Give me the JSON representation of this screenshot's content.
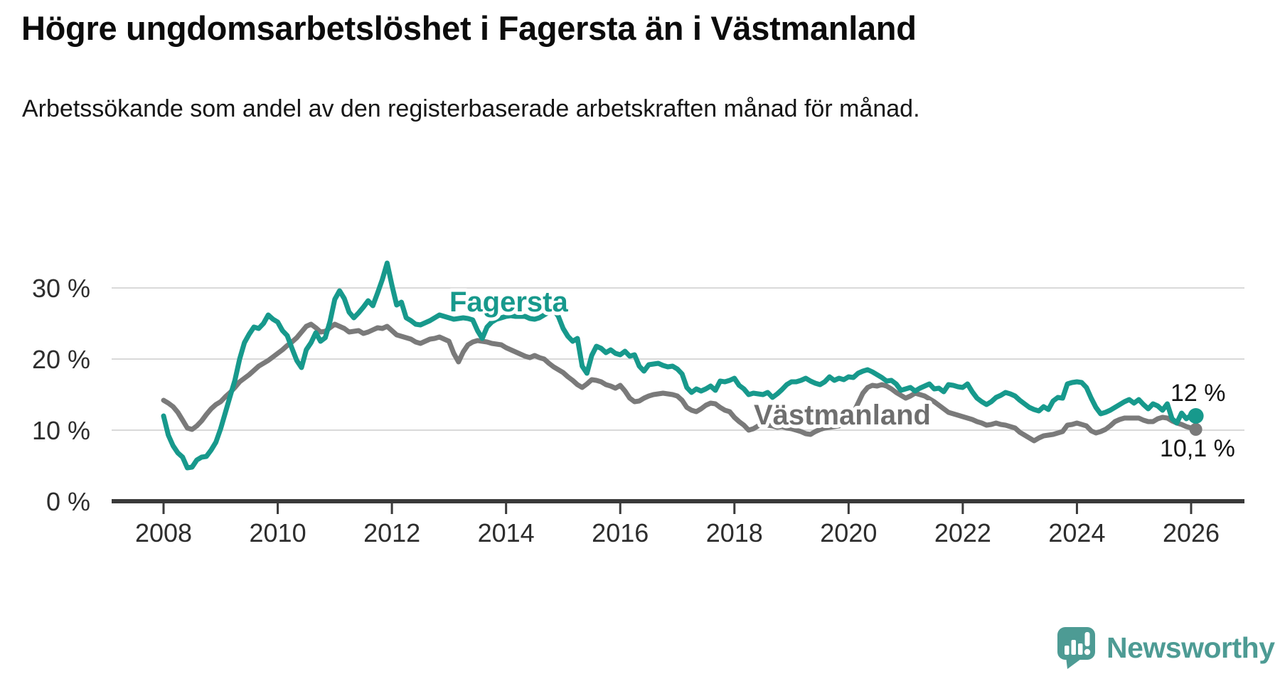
{
  "title": "Högre ungdomsarbetslöshet i Fagersta än i Västmanland",
  "subtitle": "Arbetssökande som andel av den registerbaserade arbetskraften månad för månad.",
  "branding": {
    "logo_text": "Newsworthy",
    "logo_color": "#4d9b94"
  },
  "chart_data": {
    "type": "line",
    "title": "Högre ungdomsarbetslöshet i Fagersta än i Västmanland",
    "subtitle": "Arbetssökande som andel av den registerbaserade arbetskraften månad för månad.",
    "x_axis": {
      "ticks": [
        2008,
        2010,
        2012,
        2014,
        2016,
        2018,
        2020,
        2022,
        2024,
        2026
      ],
      "tick_labels": [
        "2008",
        "2010",
        "2012",
        "2014",
        "2016",
        "2018",
        "2020",
        "2022",
        "2024",
        "2026"
      ],
      "range": [
        2007.1,
        2026.9
      ]
    },
    "y_axis": {
      "unit": "%",
      "ticks": [
        0,
        10,
        20,
        30
      ],
      "tick_labels": [
        "0 %",
        "10 %",
        "20 %",
        "30 %"
      ],
      "range": [
        0,
        35
      ],
      "grid": true
    },
    "style": {
      "grid_color": "#d9d9d9",
      "axis_color": "#3a3a3a",
      "line_width": 7
    },
    "series": [
      {
        "name": "Fagersta",
        "color": "#17998c",
        "end_label": "12 %",
        "end_value": 12,
        "end_dot_radius": 11,
        "x_start": 2008.0,
        "x_step": 0.08333,
        "values": [
          12,
          9.3,
          7.8,
          6.8,
          6.2,
          4.7,
          4.8,
          5.8,
          6.2,
          6.3,
          7.2,
          8.3,
          10.2,
          12.5,
          14.8,
          17,
          20,
          22.3,
          23.5,
          24.5,
          24.3,
          25,
          26.2,
          25.6,
          25.2,
          24,
          23.3,
          21.5,
          19.8,
          18.8,
          21.3,
          22.3,
          23.7,
          22.5,
          23,
          25.3,
          28.4,
          29.6,
          28.5,
          26.6,
          25.8,
          26.5,
          27.3,
          28.2,
          27.5,
          29.3,
          31.2,
          33.5,
          30.4,
          27.6,
          28,
          25.8,
          25.4,
          24.9,
          24.8,
          25.1,
          25.4,
          25.8,
          26.2,
          26,
          25.8,
          25.6,
          25.7,
          25.8,
          25.7,
          25.5,
          24,
          22.9,
          24.5,
          25.2,
          25.6,
          25.8,
          26,
          26.1,
          26,
          26,
          26,
          25.7,
          25.6,
          25.8,
          26.2,
          26.6,
          27,
          26,
          24.3,
          23.2,
          22.5,
          22.9,
          19,
          18,
          20.5,
          21.8,
          21.5,
          20.9,
          21.3,
          20.8,
          20.6,
          21.1,
          20.4,
          20.6,
          19,
          18.3,
          19.2,
          19.3,
          19.4,
          19.1,
          18.9,
          19,
          18.6,
          17.9,
          16,
          15.3,
          15.8,
          15.5,
          15.8,
          16.2,
          15.6,
          16.9,
          16.8,
          17,
          17.3,
          16.3,
          15.8,
          15,
          15.2,
          15.1,
          15,
          15.3,
          14.6,
          15.1,
          15.7,
          16.4,
          16.8,
          16.8,
          17,
          17.3,
          16.9,
          16.6,
          16.4,
          16.8,
          17.5,
          17,
          17.3,
          17.1,
          17.5,
          17.4,
          18,
          18.3,
          18.5,
          18.2,
          17.8,
          17.4,
          16.9,
          17,
          16.5,
          15.6,
          15.8,
          16,
          15.5,
          15.9,
          16.2,
          16.5,
          15.8,
          15.9,
          15.4,
          16.4,
          16.3,
          16.1,
          16,
          16.5,
          15.4,
          14.5,
          14,
          13.6,
          14,
          14.6,
          14.9,
          15.3,
          15.1,
          14.8,
          14.2,
          13.7,
          13.2,
          12.9,
          12.7,
          13.3,
          12.9,
          14.1,
          14.6,
          14.5,
          16.5,
          16.7,
          16.8,
          16.7,
          16,
          14.5,
          13.2,
          12.3,
          12.5,
          12.8,
          13.2,
          13.6,
          14,
          14.3,
          13.8,
          14.3,
          13.6,
          13,
          13.7,
          13.4,
          12.8,
          13.7,
          11.6,
          11,
          12.4,
          11.6,
          12.1,
          12
        ]
      },
      {
        "name": "Västmanland",
        "color": "#7a7a7a",
        "end_label": "10,1 %",
        "end_value": 10.1,
        "end_dot_radius": 9,
        "x_start": 2008.0,
        "x_step": 0.08333,
        "values": [
          14.2,
          13.8,
          13.3,
          12.5,
          11.4,
          10.3,
          10.1,
          10.6,
          11.3,
          12.2,
          13,
          13.6,
          14,
          14.7,
          15.3,
          16,
          16.8,
          17.3,
          17.8,
          18.4,
          19,
          19.4,
          19.8,
          20.3,
          20.8,
          21.3,
          21.9,
          22.4,
          23,
          23.8,
          24.6,
          24.9,
          24.4,
          23.8,
          23.9,
          24.4,
          24.9,
          24.6,
          24.3,
          23.8,
          23.9,
          24,
          23.6,
          23.8,
          24.1,
          24.4,
          24.3,
          24.6,
          24,
          23.4,
          23.2,
          23,
          22.8,
          22.4,
          22.2,
          22.5,
          22.8,
          22.9,
          23.1,
          22.8,
          22.5,
          20.8,
          19.6,
          21,
          22,
          22.4,
          22.6,
          22.5,
          22.4,
          22.2,
          22.1,
          22,
          21.6,
          21.3,
          21,
          20.7,
          20.4,
          20.2,
          20.5,
          20.2,
          20,
          19.4,
          18.9,
          18.5,
          18.1,
          17.5,
          17,
          16.4,
          16,
          16.5,
          17.1,
          17,
          16.8,
          16.4,
          16.2,
          15.9,
          16.3,
          15.5,
          14.5,
          14,
          14.1,
          14.5,
          14.8,
          15,
          15.1,
          15.2,
          15.1,
          15,
          14.8,
          14.2,
          13.2,
          12.8,
          12.6,
          13,
          13.5,
          13.8,
          13.7,
          13.2,
          12.8,
          12.6,
          11.8,
          11.2,
          10.7,
          10,
          10.2,
          10.6,
          10.9,
          10.7,
          10.6,
          10.4,
          10.5,
          10.3,
          10.2,
          10,
          9.8,
          9.5,
          9.4,
          9.8,
          10.1,
          10.3,
          10.4,
          10.5,
          10.6,
          10.9,
          11.4,
          12.4,
          13.8,
          15.2,
          16,
          16.3,
          16.2,
          16.4,
          16.2,
          15.8,
          15.3,
          14.9,
          14.5,
          14.8,
          15.2,
          15,
          14.8,
          14.4,
          14,
          13.5,
          13,
          12.5,
          12.3,
          12.1,
          11.9,
          11.7,
          11.5,
          11.2,
          11,
          10.7,
          10.8,
          11,
          10.8,
          10.7,
          10.5,
          10.3,
          9.7,
          9.3,
          8.9,
          8.5,
          8.9,
          9.2,
          9.3,
          9.4,
          9.6,
          9.8,
          10.7,
          10.8,
          11,
          10.8,
          10.6,
          9.9,
          9.6,
          9.8,
          10.1,
          10.6,
          11.2,
          11.5,
          11.7,
          11.7,
          11.7,
          11.7,
          11.4,
          11.2,
          11.2,
          11.6,
          11.8,
          11.7,
          11.3,
          11,
          10.8,
          10.5,
          10.3,
          10.1
        ]
      }
    ],
    "annotations": [
      {
        "text": "Fagersta",
        "series": "Fagersta",
        "near_year": 2013.6,
        "near_value": 28
      },
      {
        "text": "Västmanland",
        "series": "Västmanland",
        "near_year": 2020,
        "near_value": 12.3
      },
      {
        "text": "12 %",
        "series": "Fagersta",
        "near_year": 2025.8,
        "near_value": 14.5
      },
      {
        "text": "10,1 %",
        "series": "Västmanland",
        "near_year": 2025.7,
        "near_value": 6.8
      }
    ]
  }
}
